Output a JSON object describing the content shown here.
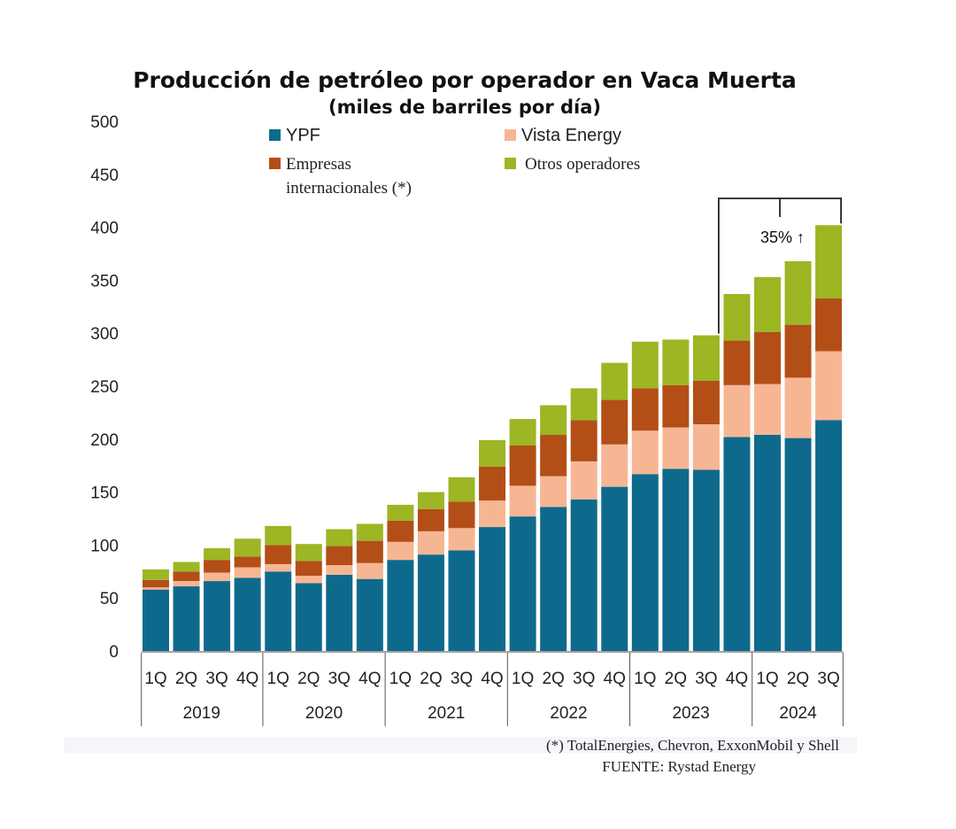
{
  "chart_data": {
    "type": "bar",
    "stacked": true,
    "title": "Producción de petróleo por operador en Vaca Muerta",
    "subtitle": "(miles de barriles por día)",
    "ylim": [
      0,
      500
    ],
    "yticks": [
      0,
      50,
      100,
      150,
      200,
      250,
      300,
      350,
      400,
      450,
      500
    ],
    "categories": [
      "1Q",
      "2Q",
      "3Q",
      "4Q",
      "1Q",
      "2Q",
      "3Q",
      "4Q",
      "1Q",
      "2Q",
      "3Q",
      "4Q",
      "1Q",
      "2Q",
      "3Q",
      "4Q",
      "1Q",
      "2Q",
      "3Q",
      "4Q",
      "1Q",
      "2Q",
      "3Q"
    ],
    "years": [
      {
        "label": "2019",
        "count": 4
      },
      {
        "label": "2020",
        "count": 4
      },
      {
        "label": "2021",
        "count": 4
      },
      {
        "label": "2022",
        "count": 4
      },
      {
        "label": "2023",
        "count": 4
      },
      {
        "label": "2024",
        "count": 3
      }
    ],
    "series": [
      {
        "name": "YPF",
        "color": "#0e6a8c",
        "legend_font": "sans",
        "values": [
          58,
          61,
          66,
          69,
          75,
          64,
          72,
          68,
          86,
          91,
          95,
          117,
          127,
          136,
          143,
          155,
          167,
          172,
          171,
          202,
          204,
          201,
          218
        ]
      },
      {
        "name": "Vista Energy",
        "color": "#f7b693",
        "legend_font": "sans",
        "values": [
          2,
          5,
          8,
          10,
          7,
          7,
          9,
          15,
          17,
          22,
          21,
          25,
          29,
          29,
          36,
          40,
          41,
          39,
          43,
          49,
          48,
          57,
          65
        ]
      },
      {
        "name": "Empresas internacionales (*)",
        "legend_lines": [
          "Empresas",
          "internacionales (*)"
        ],
        "color": "#b34e17",
        "legend_font": "serif",
        "values": [
          7,
          9,
          12,
          10,
          18,
          14,
          18,
          21,
          20,
          21,
          25,
          32,
          38,
          39,
          39,
          42,
          40,
          40,
          41,
          42,
          49,
          50,
          50
        ]
      },
      {
        "name": "Otros operadores",
        "color": "#9cb624",
        "legend_font": "serif",
        "values": [
          10,
          9,
          11,
          17,
          18,
          16,
          16,
          16,
          15,
          16,
          23,
          25,
          25,
          28,
          30,
          35,
          44,
          43,
          43,
          44,
          52,
          60,
          69
        ]
      }
    ],
    "annotation": {
      "text": "35% ↑",
      "from_index": 18,
      "to_index": 22
    },
    "footnote": "(*) TotalEnergies, Chevron, ExxonMobil y Shell",
    "source": "FUENTE: Rystad Energy"
  }
}
